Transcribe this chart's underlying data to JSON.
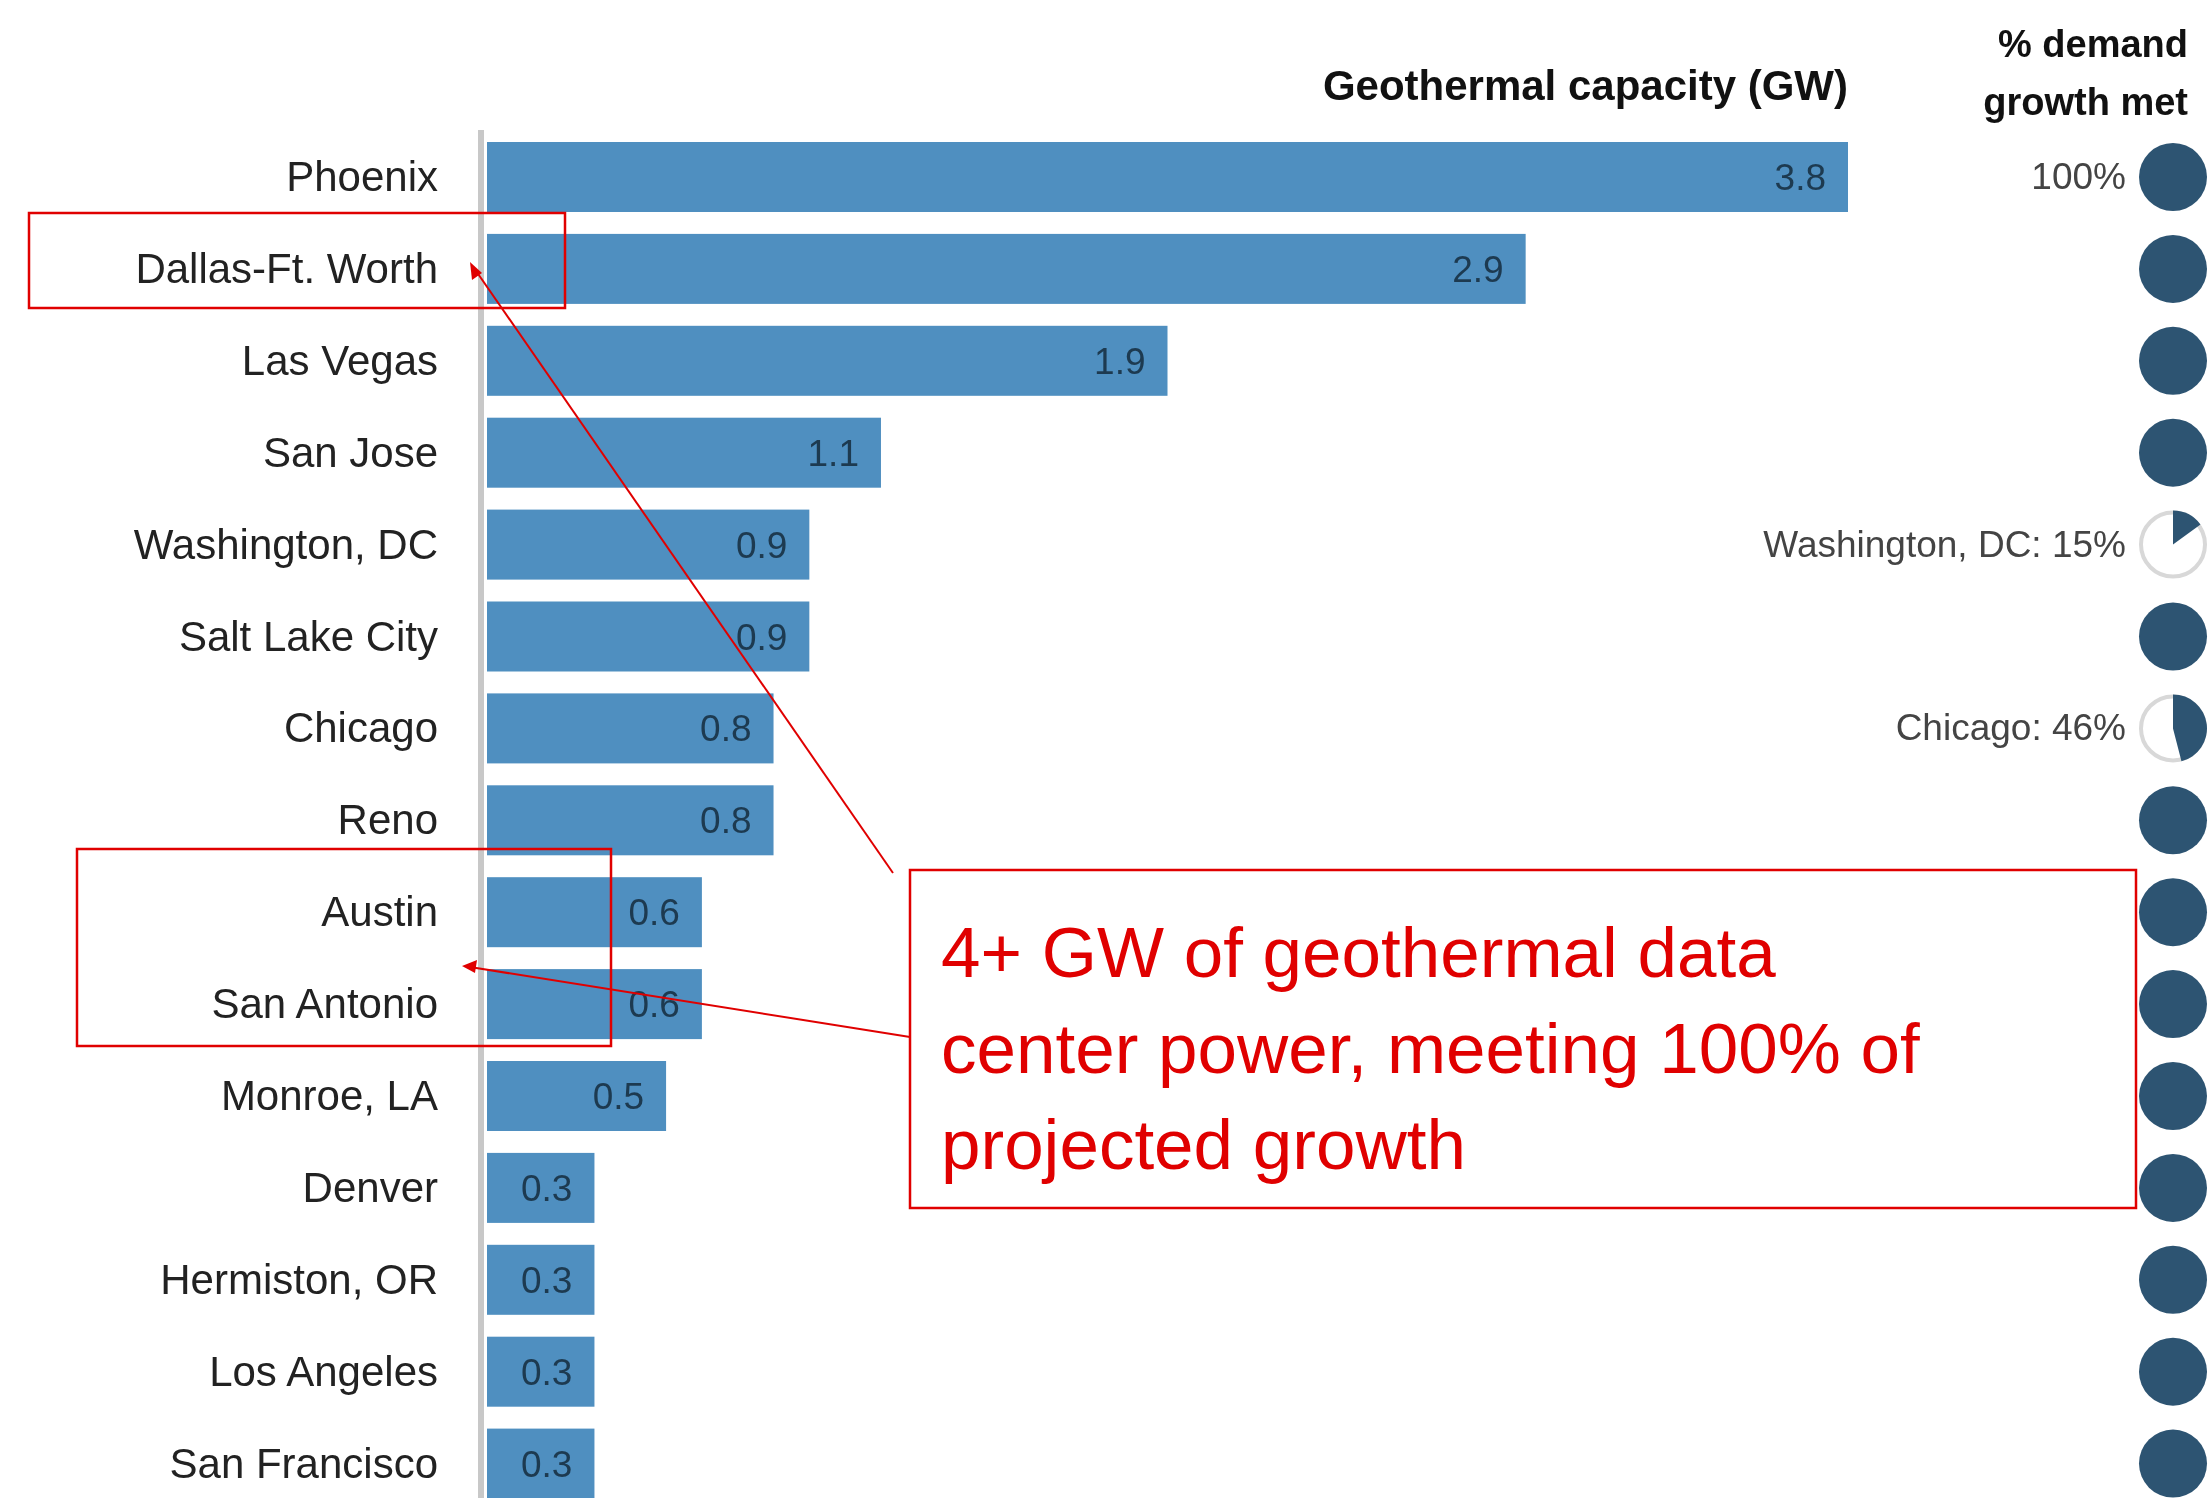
{
  "chart_data": {
    "type": "bar",
    "orientation": "horizontal",
    "title": "Geothermal capacity (GW)",
    "categories": [
      "Phoenix",
      "Dallas-Ft. Worth",
      "Las Vegas",
      "San Jose",
      "Washington, DC",
      "Salt Lake City",
      "Chicago",
      "Reno",
      "Austin",
      "San Antonio",
      "Monroe, LA",
      "Denver",
      "Hermiston, OR",
      "Los Angeles",
      "San Francisco"
    ],
    "values": [
      3.8,
      2.9,
      1.9,
      1.1,
      0.9,
      0.9,
      0.8,
      0.8,
      0.6,
      0.6,
      0.5,
      0.3,
      0.3,
      0.3,
      0.3
    ],
    "color": "#4f8fc0",
    "data_labels": true,
    "annotations": [
      "% demand growth met",
      "4+ GW of geothermal data center power, meeting 100% of projected growth",
      "100%",
      "Washington, DC: 15%",
      "Chicago: 46%"
    ]
  }
}
